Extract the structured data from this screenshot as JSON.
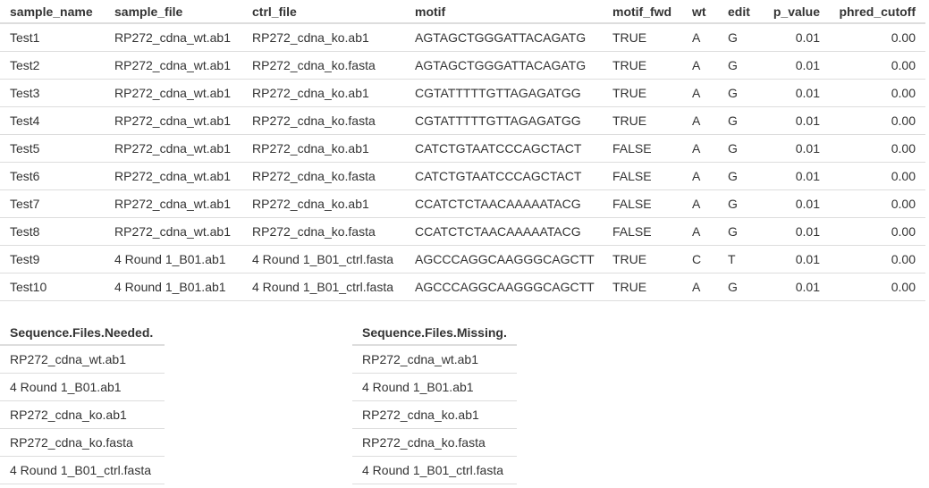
{
  "main_table": {
    "headers": [
      "sample_name",
      "sample_file",
      "ctrl_file",
      "motif",
      "motif_fwd",
      "wt",
      "edit",
      "p_value",
      "phred_cutoff"
    ],
    "rows": [
      [
        "Test1",
        "RP272_cdna_wt.ab1",
        "RP272_cdna_ko.ab1",
        "AGTAGCTGGGATTACAGATG",
        "TRUE",
        "A",
        "G",
        "0.01",
        "0.00"
      ],
      [
        "Test2",
        "RP272_cdna_wt.ab1",
        "RP272_cdna_ko.fasta",
        "AGTAGCTGGGATTACAGATG",
        "TRUE",
        "A",
        "G",
        "0.01",
        "0.00"
      ],
      [
        "Test3",
        "RP272_cdna_wt.ab1",
        "RP272_cdna_ko.ab1",
        "CGTATTTTTGTTAGAGATGG",
        "TRUE",
        "A",
        "G",
        "0.01",
        "0.00"
      ],
      [
        "Test4",
        "RP272_cdna_wt.ab1",
        "RP272_cdna_ko.fasta",
        "CGTATTTTTGTTAGAGATGG",
        "TRUE",
        "A",
        "G",
        "0.01",
        "0.00"
      ],
      [
        "Test5",
        "RP272_cdna_wt.ab1",
        "RP272_cdna_ko.ab1",
        "CATCTGTAATCCCAGCTACT",
        "FALSE",
        "A",
        "G",
        "0.01",
        "0.00"
      ],
      [
        "Test6",
        "RP272_cdna_wt.ab1",
        "RP272_cdna_ko.fasta",
        "CATCTGTAATCCCAGCTACT",
        "FALSE",
        "A",
        "G",
        "0.01",
        "0.00"
      ],
      [
        "Test7",
        "RP272_cdna_wt.ab1",
        "RP272_cdna_ko.ab1",
        "CCATCTCTAACAAAAATACG",
        "FALSE",
        "A",
        "G",
        "0.01",
        "0.00"
      ],
      [
        "Test8",
        "RP272_cdna_wt.ab1",
        "RP272_cdna_ko.fasta",
        "CCATCTCTAACAAAAATACG",
        "FALSE",
        "A",
        "G",
        "0.01",
        "0.00"
      ],
      [
        "Test9",
        "4 Round 1_B01.ab1",
        "4 Round 1_B01_ctrl.fasta",
        "AGCCCAGGCAAGGGCAGCTT",
        "TRUE",
        "C",
        "T",
        "0.01",
        "0.00"
      ],
      [
        "Test10",
        "4 Round 1_B01.ab1",
        "4 Round 1_B01_ctrl.fasta",
        "AGCCCAGGCAAGGGCAGCTT",
        "TRUE",
        "A",
        "G",
        "0.01",
        "0.00"
      ]
    ]
  },
  "needed_table": {
    "header": "Sequence.Files.Needed.",
    "rows": [
      "RP272_cdna_wt.ab1",
      "4 Round 1_B01.ab1",
      "RP272_cdna_ko.ab1",
      "RP272_cdna_ko.fasta",
      "4 Round 1_B01_ctrl.fasta"
    ]
  },
  "missing_table": {
    "header": "Sequence.Files.Missing.",
    "rows": [
      "RP272_cdna_wt.ab1",
      "4 Round 1_B01.ab1",
      "RP272_cdna_ko.ab1",
      "RP272_cdna_ko.fasta",
      "4 Round 1_B01_ctrl.fasta"
    ]
  }
}
